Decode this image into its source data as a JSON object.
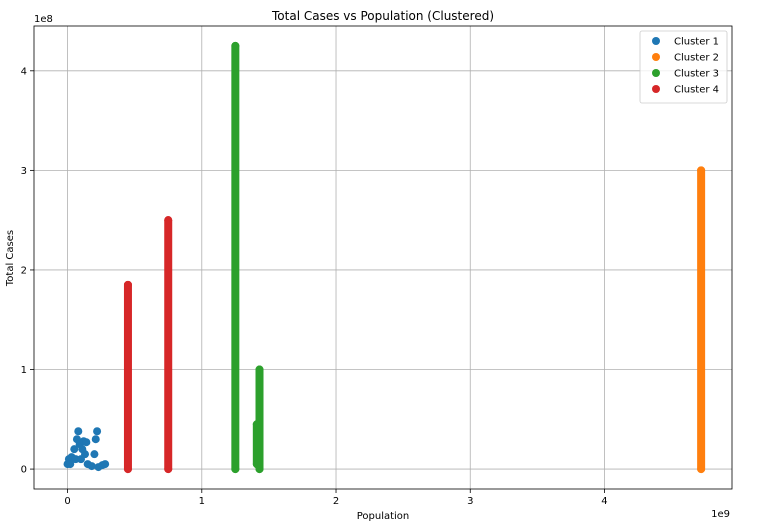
{
  "chart_data": {
    "type": "scatter",
    "title": "Total Cases vs Population (Clustered)",
    "xlabel": "Population",
    "ylabel": "Total Cases",
    "x_offset_label": "1e9",
    "y_offset_label": "1e8",
    "xlim": [
      -0.25,
      4.95
    ],
    "ylim": [
      -0.2,
      4.45
    ],
    "x_ticks": [
      0,
      1,
      2,
      3,
      4
    ],
    "y_ticks": [
      0,
      1,
      2,
      3,
      4
    ],
    "grid": true,
    "legend_position": "top-right",
    "series": [
      {
        "name": "Cluster 1",
        "color": "#1f77b4",
        "points": [
          {
            "x": 0.0,
            "y": 0.05
          },
          {
            "x": 0.01,
            "y": 0.1
          },
          {
            "x": 0.02,
            "y": 0.05
          },
          {
            "x": 0.03,
            "y": 0.12
          },
          {
            "x": 0.05,
            "y": 0.2
          },
          {
            "x": 0.06,
            "y": 0.1
          },
          {
            "x": 0.07,
            "y": 0.3
          },
          {
            "x": 0.08,
            "y": 0.38
          },
          {
            "x": 0.09,
            "y": 0.25
          },
          {
            "x": 0.1,
            "y": 0.1
          },
          {
            "x": 0.11,
            "y": 0.2
          },
          {
            "x": 0.12,
            "y": 0.28
          },
          {
            "x": 0.13,
            "y": 0.15
          },
          {
            "x": 0.14,
            "y": 0.27
          },
          {
            "x": 0.15,
            "y": 0.05
          },
          {
            "x": 0.18,
            "y": 0.03
          },
          {
            "x": 0.2,
            "y": 0.15
          },
          {
            "x": 0.21,
            "y": 0.3
          },
          {
            "x": 0.22,
            "y": 0.38
          },
          {
            "x": 0.23,
            "y": 0.02
          },
          {
            "x": 0.26,
            "y": 0.04
          },
          {
            "x": 0.28,
            "y": 0.05
          }
        ]
      },
      {
        "name": "Cluster 2",
        "color": "#ff7f0e",
        "points": [
          {
            "x": 4.72,
            "y": 0.0
          },
          {
            "x": 4.72,
            "y": 3.0
          }
        ]
      },
      {
        "name": "Cluster 3",
        "color": "#2ca02c",
        "points": [
          {
            "x": 1.25,
            "y": 0.0
          },
          {
            "x": 1.25,
            "y": 4.25
          },
          {
            "x": 1.43,
            "y": 0.0
          },
          {
            "x": 1.43,
            "y": 1.0
          },
          {
            "x": 1.41,
            "y": 0.05
          },
          {
            "x": 1.41,
            "y": 0.45
          }
        ]
      },
      {
        "name": "Cluster 4",
        "color": "#d62728",
        "points": [
          {
            "x": 0.45,
            "y": 0.0
          },
          {
            "x": 0.45,
            "y": 1.85
          },
          {
            "x": 0.75,
            "y": 0.0
          },
          {
            "x": 0.75,
            "y": 2.5
          }
        ]
      }
    ]
  }
}
